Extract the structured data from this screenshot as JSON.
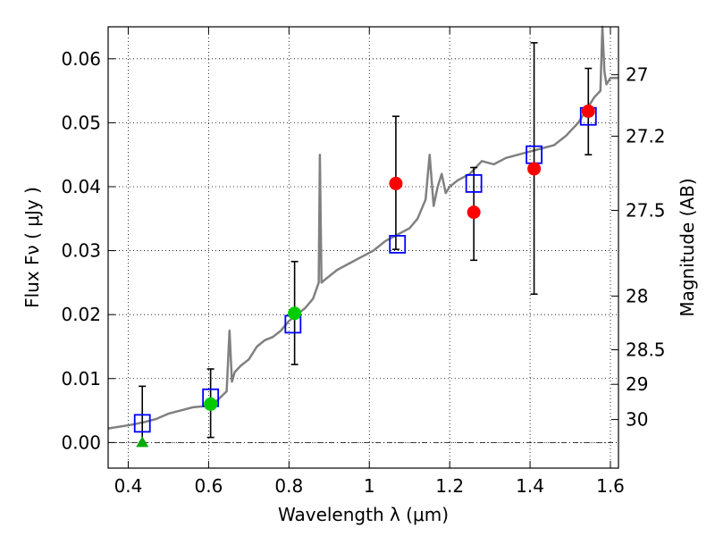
{
  "chart_data": {
    "type": "scatter",
    "xlabel": "Wavelength  λ (μm)",
    "ylabel": "Flux  Fν  ( μJy )",
    "y2label": "Magnitude (AB)",
    "xlim": [
      0.35,
      1.62
    ],
    "ylim": [
      -0.004,
      0.065
    ],
    "grid": true,
    "x_ticks": [
      0.4,
      0.6,
      0.8,
      1.0,
      1.2,
      1.4,
      1.6
    ],
    "x_tick_labels": [
      "0.4",
      "0.6",
      "0.8",
      "1",
      "1.2",
      "1.4",
      "1.6"
    ],
    "y_ticks": [
      0.0,
      0.01,
      0.02,
      0.03,
      0.04,
      0.05,
      0.06
    ],
    "y_tick_labels": [
      "0.00",
      "0.01",
      "0.02",
      "0.03",
      "0.04",
      "0.05",
      "0.06"
    ],
    "y2_ticks": [
      {
        "label": "27",
        "flux": 0.0575
      },
      {
        "label": "27.2",
        "flux": 0.0479
      },
      {
        "label": "27.5",
        "flux": 0.0363
      },
      {
        "label": "28",
        "flux": 0.0229
      },
      {
        "label": "28.5",
        "flux": 0.0145
      },
      {
        "label": "29",
        "flux": 0.0091
      },
      {
        "label": "30",
        "flux": 0.0036
      }
    ],
    "spectrum": {
      "color": "#808080",
      "x": [
        0.35,
        0.38,
        0.41,
        0.44,
        0.47,
        0.5,
        0.53,
        0.56,
        0.59,
        0.62,
        0.645,
        0.652,
        0.658,
        0.665,
        0.68,
        0.7,
        0.72,
        0.74,
        0.76,
        0.78,
        0.8,
        0.82,
        0.84,
        0.86,
        0.874,
        0.877,
        0.881,
        0.89,
        0.92,
        0.95,
        0.98,
        1.01,
        1.04,
        1.07,
        1.1,
        1.12,
        1.14,
        1.15,
        1.16,
        1.17,
        1.18,
        1.19,
        1.2,
        1.22,
        1.25,
        1.28,
        1.31,
        1.34,
        1.37,
        1.4,
        1.43,
        1.46,
        1.49,
        1.52,
        1.54,
        1.56,
        1.575,
        1.58,
        1.585,
        1.59,
        1.6,
        1.62
      ],
      "y": [
        0.0022,
        0.0025,
        0.0028,
        0.0032,
        0.0037,
        0.0045,
        0.005,
        0.0055,
        0.0057,
        0.0065,
        0.008,
        0.0175,
        0.0095,
        0.011,
        0.012,
        0.013,
        0.015,
        0.016,
        0.0165,
        0.0175,
        0.019,
        0.02,
        0.021,
        0.0225,
        0.025,
        0.045,
        0.025,
        0.0255,
        0.027,
        0.028,
        0.029,
        0.03,
        0.0315,
        0.0325,
        0.0335,
        0.035,
        0.038,
        0.045,
        0.037,
        0.04,
        0.042,
        0.039,
        0.04,
        0.041,
        0.042,
        0.044,
        0.0435,
        0.0445,
        0.045,
        0.0455,
        0.046,
        0.0465,
        0.048,
        0.05,
        0.052,
        0.054,
        0.055,
        0.065,
        0.058,
        0.056,
        0.057,
        0.057
      ]
    },
    "series": [
      {
        "marker": "square-open",
        "color": "#0000ff",
        "x": [
          0.435,
          0.605,
          0.81,
          1.07,
          1.26,
          1.41,
          1.545
        ],
        "y": [
          0.003,
          0.007,
          0.0185,
          0.031,
          0.0405,
          0.045,
          0.051
        ]
      },
      {
        "marker": "circle",
        "color": "#00cc00",
        "x": [
          0.605,
          0.814
        ],
        "y": [
          0.006,
          0.0202
        ]
      },
      {
        "marker": "circle",
        "color": "#ff0000",
        "x": [
          1.066,
          1.26,
          1.41,
          1.545
        ],
        "y": [
          0.0405,
          0.036,
          0.0428,
          0.0518
        ]
      },
      {
        "marker": "triangle",
        "color": "#00aa00",
        "x": [
          0.435
        ],
        "y": [
          0.0
        ]
      }
    ],
    "error_bars": [
      {
        "x": 0.435,
        "low": 0.0,
        "high": 0.0088
      },
      {
        "x": 0.605,
        "low": 0.0008,
        "high": 0.0115
      },
      {
        "x": 0.814,
        "low": 0.0122,
        "high": 0.0283
      },
      {
        "x": 1.066,
        "low": 0.0302,
        "high": 0.051
      },
      {
        "x": 1.26,
        "low": 0.0285,
        "high": 0.043
      },
      {
        "x": 1.41,
        "low": 0.0232,
        "high": 0.0625
      },
      {
        "x": 1.545,
        "low": 0.045,
        "high": 0.0585
      }
    ],
    "zero_line": 0.0
  }
}
